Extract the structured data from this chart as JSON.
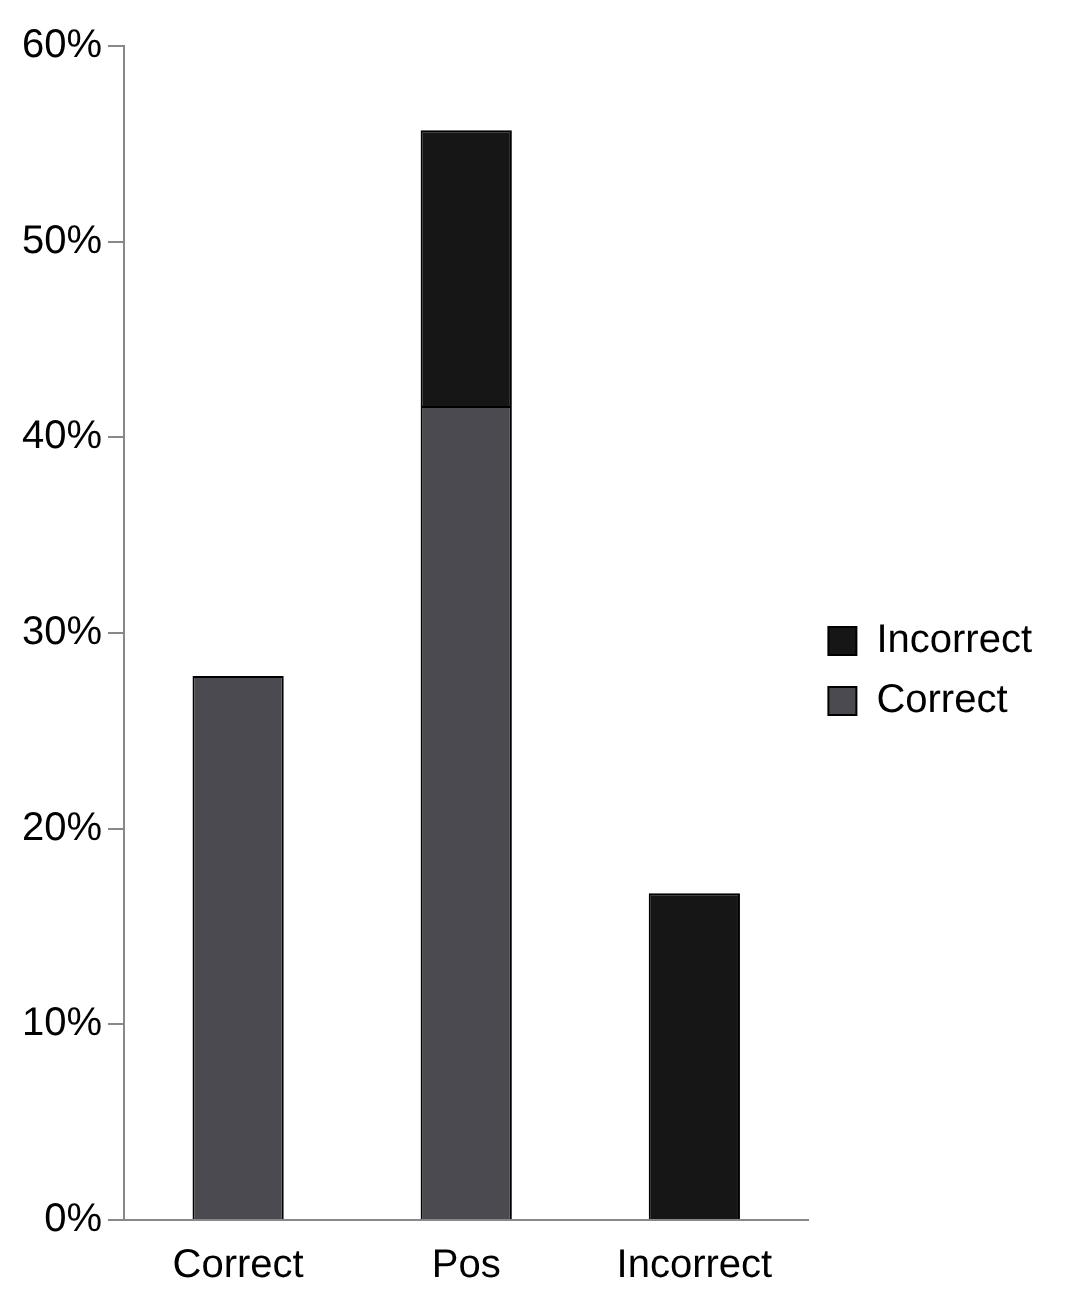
{
  "chart_data": {
    "type": "bar",
    "stacked": true,
    "categories": [
      "Correct",
      "Pos",
      "Incorrect"
    ],
    "series": [
      {
        "name": "Correct",
        "color": "#4a4a50",
        "values": [
          27.8,
          41.6,
          null
        ]
      },
      {
        "name": "Incorrect",
        "color": "#161616",
        "values": [
          null,
          14.1,
          16.7
        ]
      }
    ],
    "ylim": [
      0,
      60
    ],
    "yticks": [
      {
        "value": 0,
        "label": "0%"
      },
      {
        "value": 10,
        "label": "10%"
      },
      {
        "value": 20,
        "label": "20%"
      },
      {
        "value": 30,
        "label": "30%"
      },
      {
        "value": 40,
        "label": "40%"
      },
      {
        "value": 50,
        "label": "50%"
      },
      {
        "value": 60,
        "label": "60%"
      }
    ],
    "grid": false,
    "legend": "right"
  }
}
